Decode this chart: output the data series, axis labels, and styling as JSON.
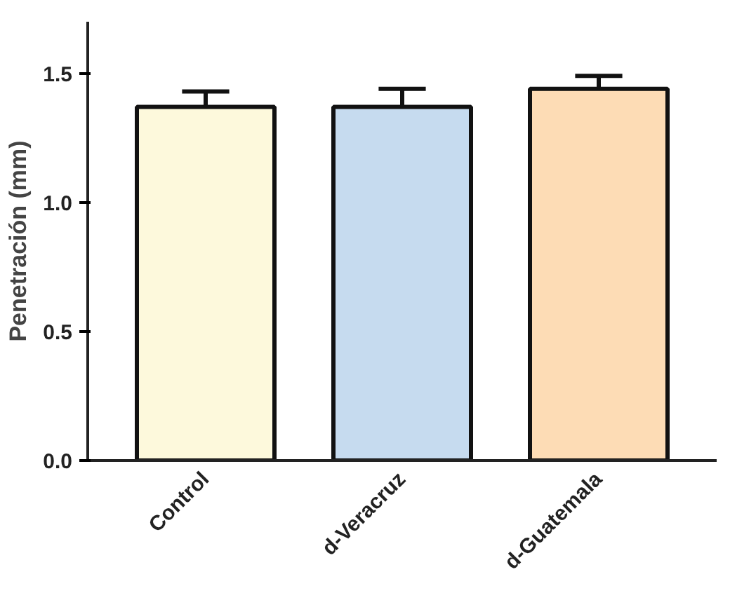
{
  "chart_data": {
    "type": "bar",
    "ylabel": "Penetración (mm)",
    "categories": [
      "Control",
      "d-Veracruz",
      "d-Guatemala"
    ],
    "values": [
      1.37,
      1.37,
      1.44
    ],
    "errors": [
      [
        1.37,
        1.43
      ],
      [
        1.37,
        1.44
      ],
      [
        1.44,
        1.49
      ]
    ],
    "colors": [
      "#fdf9dc",
      "#c6dbef",
      "#fddcb5"
    ],
    "ylim": [
      0,
      1.7
    ],
    "yticks": [
      {
        "value": 0,
        "label": "0.0"
      },
      {
        "value": 0.5,
        "label": "0.5"
      },
      {
        "value": 1.0,
        "label": "1.0"
      },
      {
        "value": 1.5,
        "label": "1.5"
      }
    ],
    "grid": false
  }
}
